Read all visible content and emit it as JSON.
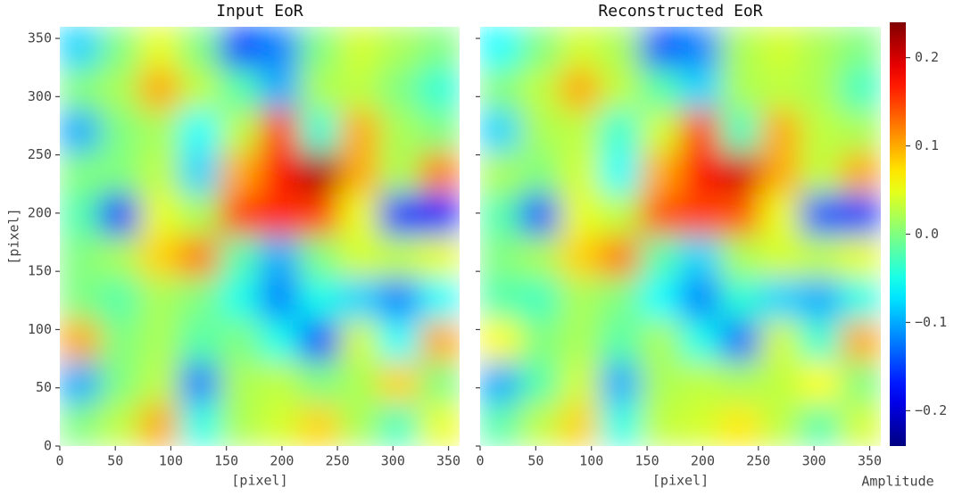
{
  "chart_data": [
    {
      "type": "heatmap",
      "title": "Input EoR",
      "xlabel": "[pixel]",
      "ylabel": "[pixel]",
      "xlim": [
        0,
        360
      ],
      "ylim": [
        0,
        360
      ],
      "xticks": [
        0,
        50,
        100,
        150,
        200,
        250,
        300,
        350
      ],
      "yticks": [
        0,
        50,
        100,
        150,
        200,
        250,
        300,
        350
      ],
      "values": [
        [
          -0.08,
          0,
          0.05,
          0,
          -0.15,
          -0.12,
          0,
          0.04,
          0.02,
          0
        ],
        [
          0,
          0.02,
          0.1,
          0.03,
          -0.02,
          -0.1,
          0.02,
          0.03,
          0,
          -0.04
        ],
        [
          -0.1,
          0,
          0.02,
          -0.06,
          0.03,
          0.15,
          -0.04,
          0.1,
          0.02,
          0
        ],
        [
          0,
          0,
          0.03,
          -0.08,
          0.1,
          0.17,
          0.22,
          0.1,
          0.02,
          0.12
        ],
        [
          -0.02,
          -0.16,
          0.05,
          0.02,
          0.15,
          0.16,
          0.15,
          0.05,
          -0.16,
          -0.17
        ],
        [
          0,
          0.02,
          0.08,
          0.12,
          -0.02,
          -0.1,
          0,
          0.04,
          0.03,
          0.05
        ],
        [
          0,
          -0.02,
          0.02,
          0,
          -0.05,
          -0.12,
          -0.05,
          -0.08,
          -0.12,
          -0.06
        ],
        [
          0.1,
          0,
          0.02,
          -0.02,
          0,
          -0.05,
          -0.15,
          0.04,
          -0.06,
          0.1
        ],
        [
          -0.1,
          0,
          0.03,
          -0.12,
          0.02,
          0.03,
          0,
          0.02,
          0.08,
          0
        ],
        [
          0,
          0.03,
          0.1,
          -0.05,
          0.02,
          0.04,
          0.08,
          0.02,
          -0.03,
          0.05
        ]
      ]
    },
    {
      "type": "heatmap",
      "title": "Reconstructed EoR",
      "xlabel": "[pixel]",
      "xlim": [
        0,
        360
      ],
      "ylim": [
        0,
        360
      ],
      "xticks": [
        0,
        50,
        100,
        150,
        200,
        250,
        300,
        350
      ],
      "yticks": [
        0,
        50,
        100,
        150,
        200,
        250,
        300,
        350
      ],
      "values": [
        [
          -0.06,
          0,
          0.04,
          0.02,
          -0.14,
          -0.12,
          0.02,
          0.04,
          0.02,
          0
        ],
        [
          0,
          0.03,
          0.1,
          0.03,
          -0.02,
          -0.08,
          0.02,
          0.03,
          0.02,
          -0.03
        ],
        [
          -0.08,
          0.02,
          0.03,
          -0.04,
          0.04,
          0.15,
          -0.03,
          0.1,
          0.03,
          0.02
        ],
        [
          0.02,
          0,
          0.04,
          -0.06,
          0.1,
          0.17,
          0.2,
          0.1,
          0.03,
          0.1
        ],
        [
          -0.02,
          -0.14,
          0.05,
          0.03,
          0.14,
          0.15,
          0.14,
          0.05,
          -0.14,
          -0.15
        ],
        [
          0,
          0.02,
          0.08,
          0.12,
          -0.02,
          -0.08,
          0.02,
          0.04,
          0.03,
          0.05
        ],
        [
          -0.02,
          -0.03,
          0.02,
          0,
          -0.06,
          -0.12,
          -0.04,
          -0.08,
          -0.1,
          -0.05
        ],
        [
          0.06,
          0,
          0.02,
          -0.02,
          0.02,
          -0.05,
          -0.13,
          0.04,
          -0.04,
          0.1
        ],
        [
          -0.1,
          -0.02,
          0.04,
          -0.1,
          0.02,
          0.03,
          0.02,
          0.03,
          0.06,
          0
        ],
        [
          -0.02,
          0.03,
          0.08,
          -0.05,
          0.03,
          0.04,
          0.07,
          0.03,
          -0.02,
          0.04
        ]
      ],
      "colorbar": {
        "label": "Amplitude",
        "colormap": "jet",
        "clim": [
          -0.24,
          0.24
        ],
        "ticks": [
          {
            "value": -0.2,
            "label": "−0.2"
          },
          {
            "value": -0.1,
            "label": "−0.1"
          },
          {
            "value": 0,
            "label": "0.0"
          },
          0.1,
          0.2
        ]
      }
    }
  ]
}
